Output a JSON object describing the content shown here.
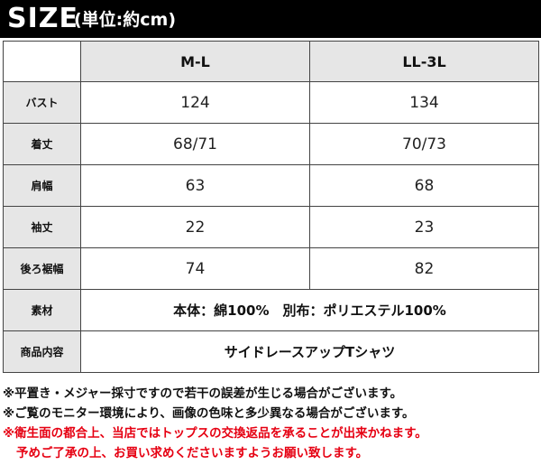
{
  "title": {
    "main": "SIZE",
    "sub": "(単位:約cm)"
  },
  "table": {
    "columns": [
      "M-L",
      "LL-3L"
    ],
    "rows": [
      {
        "label": "バスト",
        "values": [
          "124",
          "134"
        ]
      },
      {
        "label": "着丈",
        "values": [
          "68/71",
          "70/73"
        ]
      },
      {
        "label": "肩幅",
        "values": [
          "63",
          "68"
        ]
      },
      {
        "label": "袖丈",
        "values": [
          "22",
          "23"
        ]
      },
      {
        "label": "後ろ裾幅",
        "values": [
          "74",
          "82"
        ]
      }
    ],
    "material": {
      "label": "素材",
      "value": "本体：綿100%　別布：ポリエステル100%"
    },
    "product": {
      "label": "商品内容",
      "value": "サイドレースアップTシャツ"
    }
  },
  "notes": {
    "line1": "※平置き・メジャー採寸ですので若干の誤差が生じる場合がございます。",
    "line2": "※ご覧のモニター環境により、画像の色味と多少異なる場合がございます。",
    "line3": "※衛生面の都合上、当店ではトップスの交換返品を承ることが出来かねます。",
    "line4": "予めご了承の上、お買い求めくださいますようお願い致します。"
  },
  "colors": {
    "title_bg": "#000000",
    "label_bg": "#e6e6e6",
    "warning_red": "#e60012"
  }
}
